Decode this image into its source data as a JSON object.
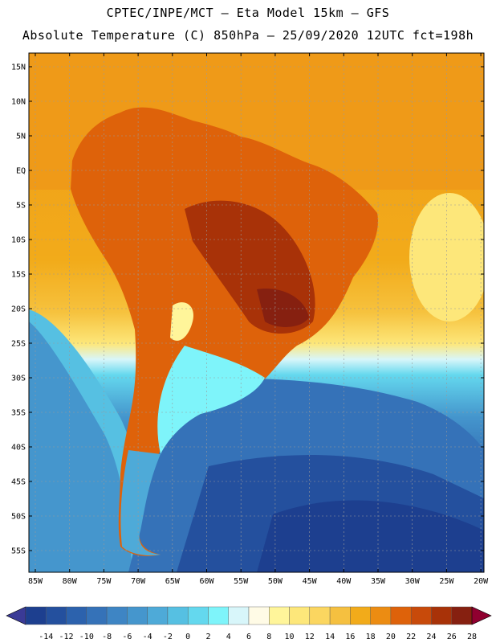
{
  "header": {
    "line1": "CPTEC/INPE/MCT –  Eta Model 15km – GFS",
    "line2": "Absolute Temperature (C) 850hPa – 25/09/2020 12UTC fct=198h"
  },
  "map": {
    "lat_labels": [
      "15N",
      "10N",
      "5N",
      "EQ",
      "5S",
      "10S",
      "15S",
      "20S",
      "25S",
      "30S",
      "35S",
      "40S",
      "45S",
      "50S",
      "55S"
    ],
    "lon_labels": [
      "85W",
      "80W",
      "75W",
      "70W",
      "65W",
      "60W",
      "55W",
      "50W",
      "45W",
      "40W",
      "35W",
      "30W",
      "25W",
      "20W"
    ]
  },
  "colorbar": {
    "ticks": [
      "-14",
      "-12",
      "-10",
      "-8",
      "-6",
      "-4",
      "-2",
      "0",
      "2",
      "4",
      "6",
      "8",
      "10",
      "12",
      "14",
      "16",
      "18",
      "20",
      "22",
      "24",
      "26",
      "28"
    ],
    "colors": [
      "#1d3f8f",
      "#24509e",
      "#2c62ad",
      "#3572b8",
      "#3e85c4",
      "#4596cd",
      "#4eaad8",
      "#56c0e2",
      "#64d8ee",
      "#7ef4fa",
      "#d8f6fa",
      "#fffbe6",
      "#fff59a",
      "#fde77a",
      "#fbd660",
      "#f5c040",
      "#f2ab1a",
      "#ec8c12",
      "#de620a",
      "#c84a0a",
      "#a83208",
      "#862010"
    ],
    "under_color": "#3a3a96",
    "over_color": "#900030"
  }
}
